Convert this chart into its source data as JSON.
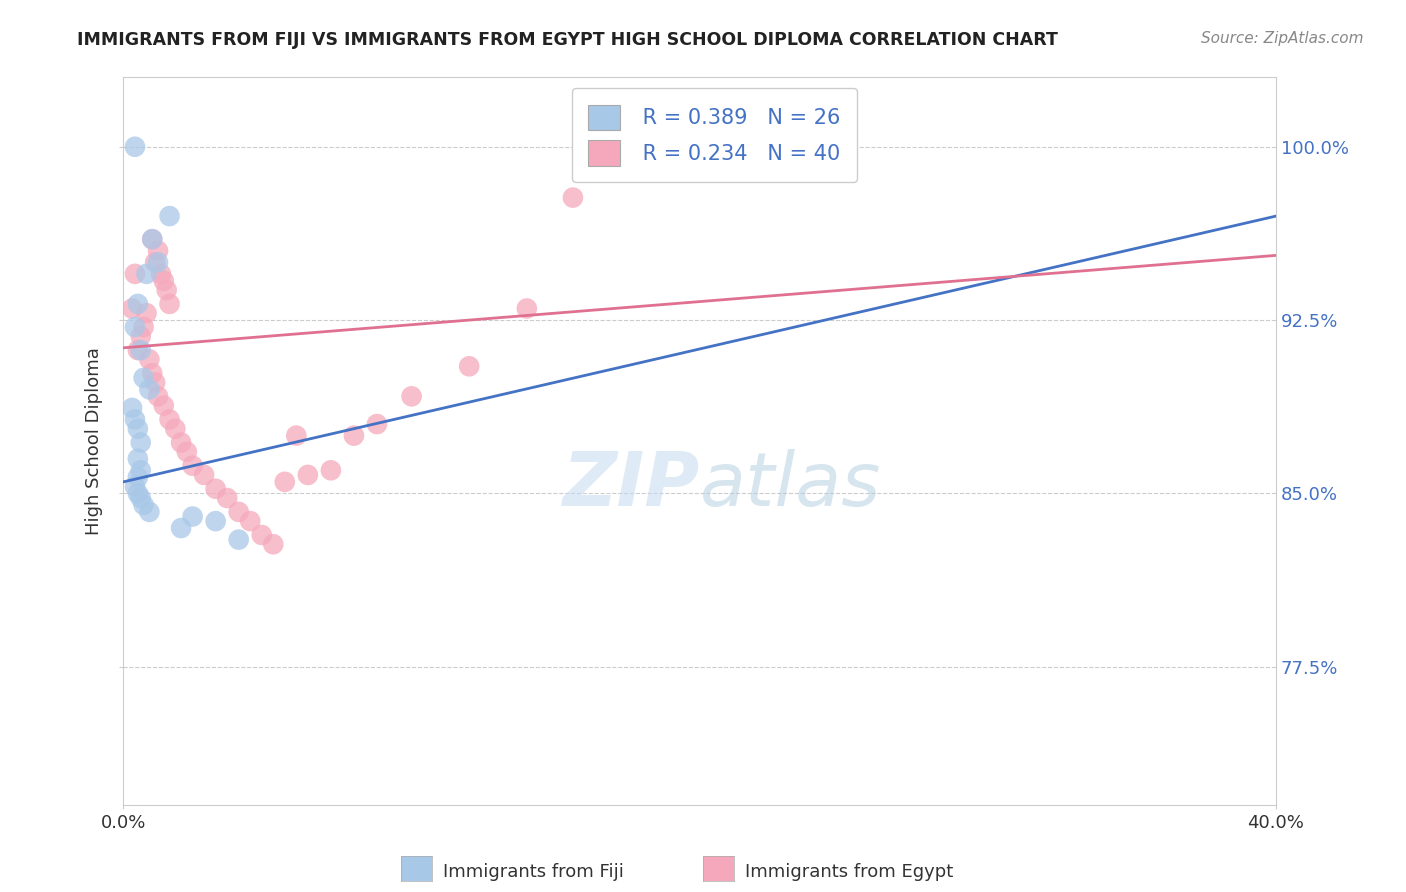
{
  "title": "IMMIGRANTS FROM FIJI VS IMMIGRANTS FROM EGYPT HIGH SCHOOL DIPLOMA CORRELATION CHART",
  "source": "Source: ZipAtlas.com",
  "ylabel": "High School Diploma",
  "yticks": [
    "77.5%",
    "85.0%",
    "92.5%",
    "100.0%"
  ],
  "ytick_vals": [
    0.775,
    0.85,
    0.925,
    1.0
  ],
  "xlim": [
    0.0,
    0.4
  ],
  "ylim": [
    0.715,
    1.03
  ],
  "legend_fiji_r": "R = 0.389",
  "legend_fiji_n": "N = 26",
  "legend_egypt_r": "R = 0.234",
  "legend_egypt_n": "N = 40",
  "fiji_color": "#a8c8e8",
  "egypt_color": "#f5a8bc",
  "fiji_line_color": "#4472c4",
  "egypt_line_color": "#e07090",
  "fiji_x": [
    0.004,
    0.016,
    0.01,
    0.012,
    0.008,
    0.005,
    0.004,
    0.006,
    0.007,
    0.009,
    0.003,
    0.004,
    0.005,
    0.006,
    0.005,
    0.006,
    0.005,
    0.004,
    0.005,
    0.006,
    0.007,
    0.009,
    0.024,
    0.032,
    0.02,
    0.04
  ],
  "fiji_y": [
    1.0,
    0.97,
    0.96,
    0.95,
    0.945,
    0.932,
    0.922,
    0.912,
    0.9,
    0.895,
    0.887,
    0.882,
    0.878,
    0.872,
    0.865,
    0.86,
    0.857,
    0.853,
    0.85,
    0.848,
    0.845,
    0.842,
    0.84,
    0.838,
    0.835,
    0.83
  ],
  "egypt_x": [
    0.003,
    0.004,
    0.01,
    0.012,
    0.011,
    0.013,
    0.014,
    0.015,
    0.016,
    0.008,
    0.007,
    0.006,
    0.005,
    0.009,
    0.01,
    0.011,
    0.012,
    0.014,
    0.016,
    0.018,
    0.02,
    0.022,
    0.024,
    0.028,
    0.032,
    0.036,
    0.04,
    0.044,
    0.048,
    0.052,
    0.056,
    0.06,
    0.064,
    0.072,
    0.08,
    0.088,
    0.1,
    0.12,
    0.14,
    0.156
  ],
  "egypt_y": [
    0.93,
    0.945,
    0.96,
    0.955,
    0.95,
    0.945,
    0.942,
    0.938,
    0.932,
    0.928,
    0.922,
    0.918,
    0.912,
    0.908,
    0.902,
    0.898,
    0.892,
    0.888,
    0.882,
    0.878,
    0.872,
    0.868,
    0.862,
    0.858,
    0.852,
    0.848,
    0.842,
    0.838,
    0.832,
    0.828,
    0.855,
    0.875,
    0.858,
    0.86,
    0.875,
    0.88,
    0.892,
    0.905,
    0.93,
    0.978
  ],
  "watermark_zip": "ZIP",
  "watermark_atlas": "atlas",
  "background_color": "#ffffff",
  "grid_color": "#cccccc",
  "title_color": "#222222",
  "axis_label_color": "#4472c4",
  "ytick_color": "#4472c4"
}
